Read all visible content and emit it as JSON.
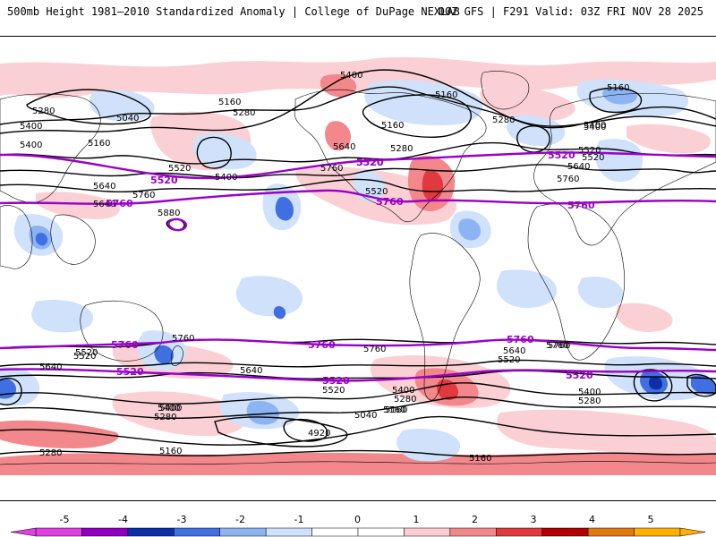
{
  "header": {
    "title_left": "500mb Height 1981–2010 Standardized Anomaly | College of DuPage NEXLAB",
    "title_right": "00Z GFS | F291 Valid: 03Z FRI NOV 28 2025"
  },
  "contour_labels": {
    "black": [
      "5400",
      "5160",
      "5040",
      "5280",
      "5400",
      "5160",
      "5160",
      "5280",
      "5520",
      "5400",
      "5640",
      "5760",
      "5880",
      "5280",
      "5400",
      "5640",
      "5520",
      "5760",
      "5160",
      "5280",
      "5400",
      "5520",
      "5640",
      "5760",
      "5160",
      "5400",
      "5520",
      "5640",
      "5760",
      "5760",
      "5640",
      "5520",
      "5400",
      "5280",
      "5760",
      "5640",
      "5520",
      "5400",
      "5280",
      "5160",
      "4920",
      "5520",
      "5400",
      "5160",
      "5040",
      "5280",
      "5760",
      "5640",
      "5520",
      "5400",
      "5280",
      "5160",
      "5160"
    ],
    "purple": [
      "5520",
      "5760",
      "5520",
      "5760",
      "5520",
      "5760",
      "5760",
      "5520",
      "5760",
      "5520",
      "5760",
      "5520",
      "5520"
    ]
  },
  "colorbar": {
    "ticks": [
      "-5",
      "-4",
      "-3",
      "-2",
      "-1",
      "0",
      "1",
      "2",
      "3",
      "4",
      "5"
    ],
    "colors": [
      "#e040e0",
      "#9000c0",
      "#0b2fa8",
      "#3f6fe0",
      "#8cb4f2",
      "#cfe1fb",
      "#ffffff",
      "#ffffff",
      "#fbcdd0",
      "#f2878c",
      "#e03a3e",
      "#b00000",
      "#e07a10",
      "#ffb000"
    ]
  },
  "map": {
    "land_color": "#000000",
    "positive_light": "#fbd0d4",
    "positive_med": "#f2878c",
    "positive_strong": "#e03a3e",
    "negative_light": "#cfe1fb",
    "negative_med": "#8cb4f2",
    "negative_strong": "#3f6fe0",
    "negative_deep": "#0b2fa8",
    "contour_black": "#000000",
    "contour_purple": "#9a00c8"
  }
}
